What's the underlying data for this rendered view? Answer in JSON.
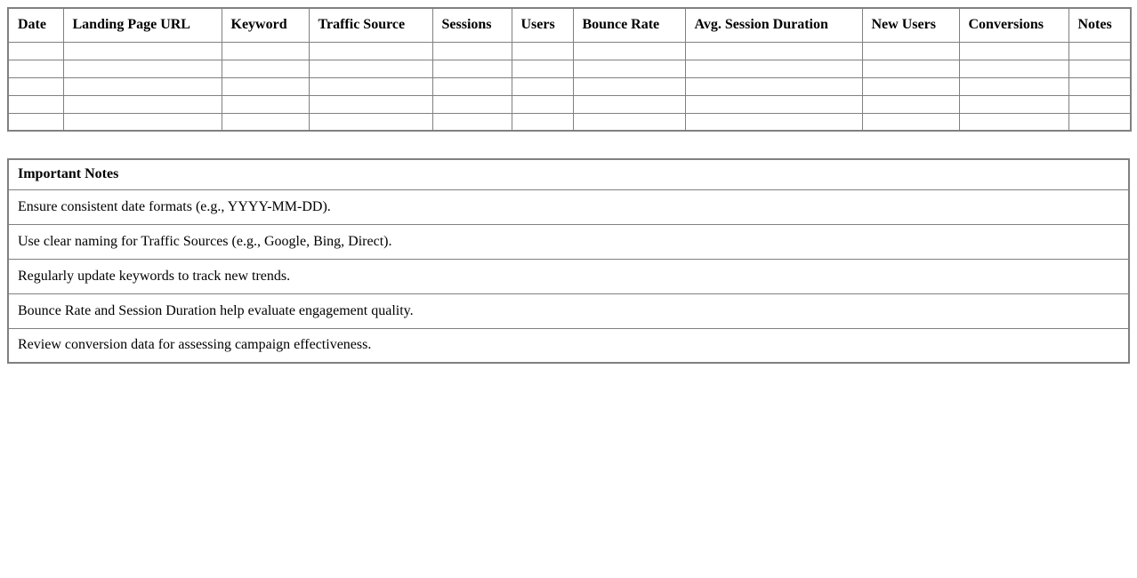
{
  "colors": {
    "border": "#808080",
    "text": "#000000",
    "background": "#ffffff"
  },
  "main_table": {
    "columns": [
      "Date",
      "Landing Page URL",
      "Keyword",
      "Traffic Source",
      "Sessions",
      "Users",
      "Bounce Rate",
      "Avg. Session Duration",
      "New Users",
      "Conversions",
      "Notes"
    ],
    "empty_rows": 5
  },
  "notes_table": {
    "header": "Important Notes",
    "notes": [
      "Ensure consistent date formats (e.g., YYYY-MM-DD).",
      "Use clear naming for Traffic Sources (e.g., Google, Bing, Direct).",
      "Regularly update keywords to track new trends.",
      "Bounce Rate and Session Duration help evaluate engagement quality.",
      "Review conversion data for assessing campaign effectiveness."
    ]
  }
}
